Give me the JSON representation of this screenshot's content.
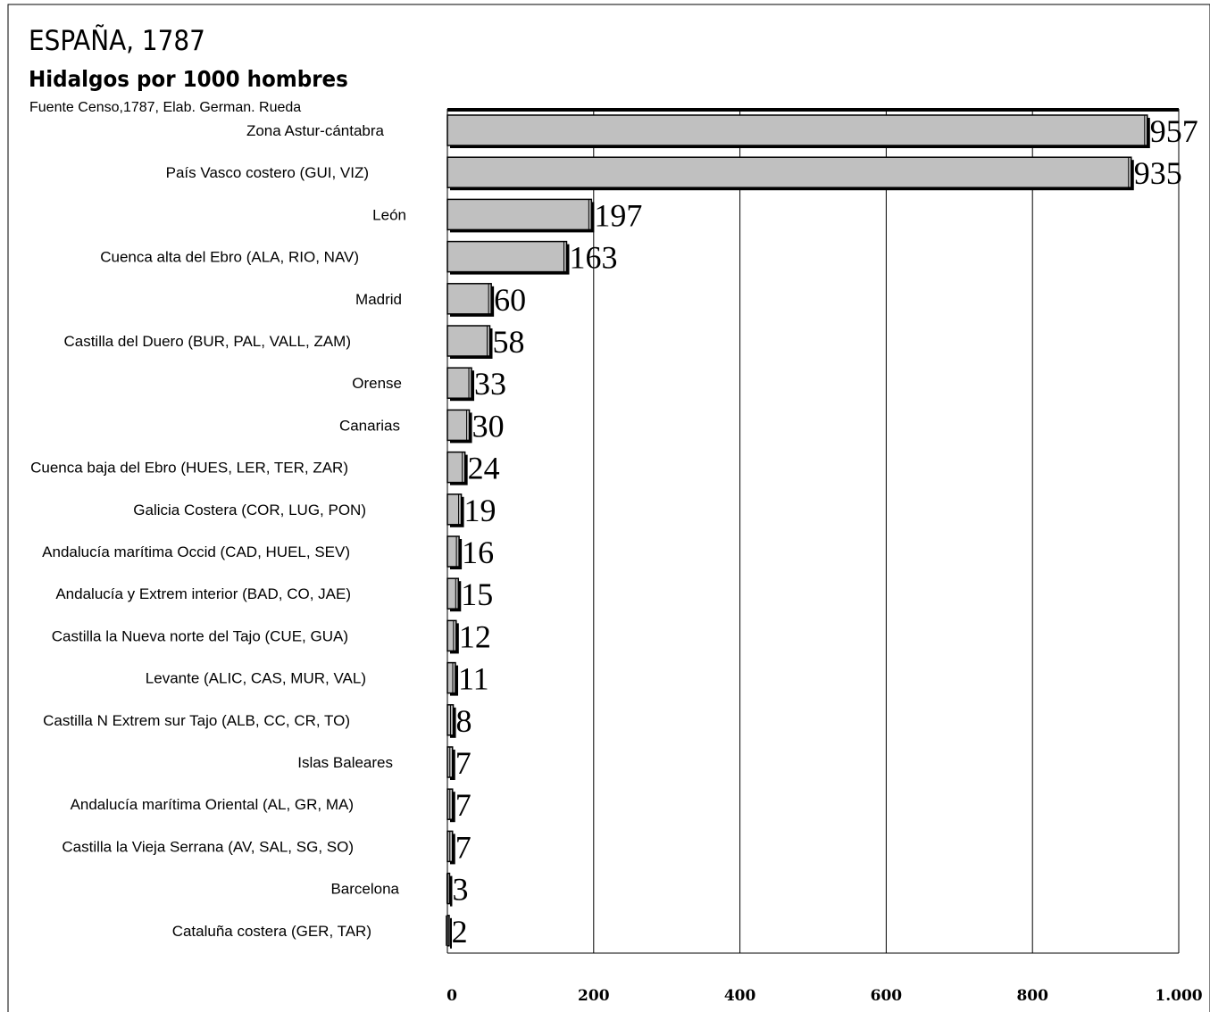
{
  "chart_data": {
    "type": "bar",
    "orientation": "horizontal",
    "title": "ESPAÑA, 1787",
    "subtitle": "Hidalgos por 1000 hombres",
    "source": "Fuente Censo,1787,  Elab. German. Rueda",
    "xlim": [
      0,
      1000
    ],
    "xticks": [
      0,
      200,
      400,
      600,
      800,
      1000
    ],
    "xtick_labels": [
      "0",
      "200",
      "400",
      "600",
      "800",
      "1.000"
    ],
    "grid": "vertical",
    "categories": [
      "Zona Astur-cántabra",
      "País Vasco costero (GUI, VIZ)",
      "León",
      "Cuenca alta del Ebro (ALA, RIO, NAV)",
      "Madrid",
      "Castilla del Duero (BUR, PAL, VALL, ZAM)",
      "Orense",
      "Canarias",
      "Cuenca baja del Ebro (HUES, LER, TER, ZAR)",
      "Galicia Costera (COR, LUG, PON)",
      "Andalucía marítima Occid (CAD, HUEL, SEV)",
      "Andalucía y Extrem interior (BAD, CO, JAE)",
      "Castilla la Nueva norte del Tajo (CUE, GUA)",
      "Levante (ALIC, CAS, MUR, VAL)",
      "Castilla N  Extrem sur Tajo (ALB, CC, CR, TO)",
      "Islas Baleares",
      "Andalucía marítima Oriental (AL, GR, MA)",
      "Castilla la Vieja Serrana (AV, SAL, SG, SO)",
      "Barcelona",
      "Cataluña costera (GER, TAR)"
    ],
    "values": [
      957,
      935,
      197,
      163,
      60,
      58,
      33,
      30,
      24,
      19,
      16,
      15,
      12,
      11,
      8,
      7,
      7,
      7,
      3,
      2
    ],
    "colors": {
      "bar": "#c0c0c0",
      "outline": "#000000",
      "grid": "#000000"
    }
  }
}
